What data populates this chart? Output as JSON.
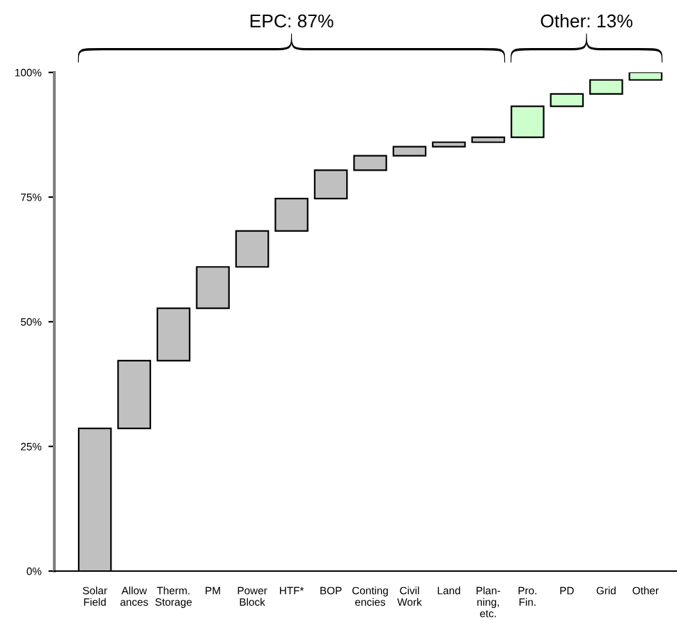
{
  "chart_data": {
    "type": "bar",
    "categories": [
      "Solar\nField",
      "Allow\nances",
      "Therm.\nStorage",
      "PM",
      "Power\nBlock",
      "HTF*",
      "BOP",
      "Conting\nencies",
      "Civil\nWork",
      "Land",
      "Plan-\nning,\netc.",
      "Pro.\nFin.",
      "PD",
      "Grid",
      "Other"
    ],
    "values": [
      28.6,
      13.6,
      10.5,
      8.3,
      7.2,
      6.5,
      5.7,
      2.9,
      1.8,
      0.9,
      1.0,
      6.2,
      2.5,
      2.8,
      1.5
    ],
    "base": [
      0,
      28.6,
      42.2,
      52.7,
      61.0,
      68.2,
      74.7,
      80.4,
      83.3,
      85.1,
      86.0,
      87.0,
      93.2,
      95.7,
      98.5
    ],
    "colors": [
      "#c0c0c0",
      "#c0c0c0",
      "#c0c0c0",
      "#c0c0c0",
      "#c0c0c0",
      "#c0c0c0",
      "#c0c0c0",
      "#c0c0c0",
      "#c0c0c0",
      "#c0c0c0",
      "#c0c0c0",
      "#ccffcc",
      "#ccffcc",
      "#ccffcc",
      "#ccffcc"
    ],
    "ylim": [
      0,
      100
    ],
    "yticks": [
      {
        "value": 0,
        "label": "0%"
      },
      {
        "value": 25,
        "label": "25%"
      },
      {
        "value": 50,
        "label": "50%"
      },
      {
        "value": 75,
        "label": "75%"
      },
      {
        "value": 100,
        "label": "100%"
      }
    ],
    "annotations": [
      "EPC: 87%",
      "Other: 13%"
    ],
    "grid": false,
    "legend": false
  }
}
